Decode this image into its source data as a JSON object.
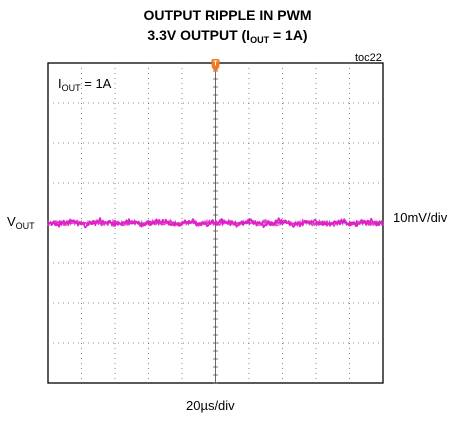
{
  "chart_data": {
    "type": "line",
    "title_line1": "OUTPUT RIPPLE IN PWM",
    "title_line2_prefix": "3.3V OUTPUT (I",
    "title_line2_sub": "OUT",
    "title_line2_suffix": " = 1A)",
    "figure_id": "toc22",
    "annotation_prefix": "I",
    "annotation_sub": "OUT",
    "annotation_suffix": " = 1A",
    "trace_label_main": "V",
    "trace_label_sub": "OUT",
    "y_scale_label": "10mV/div",
    "x_scale_label": "20µs/div",
    "x_divisions": 10,
    "y_divisions": 8,
    "trigger_marker": "T",
    "series": [
      {
        "color": "#e020c8",
        "center_division": 4,
        "ripple_pp_mv": 5,
        "description_level": "flat with small high-frequency ripple"
      }
    ],
    "trigger_color": "#f07820"
  }
}
